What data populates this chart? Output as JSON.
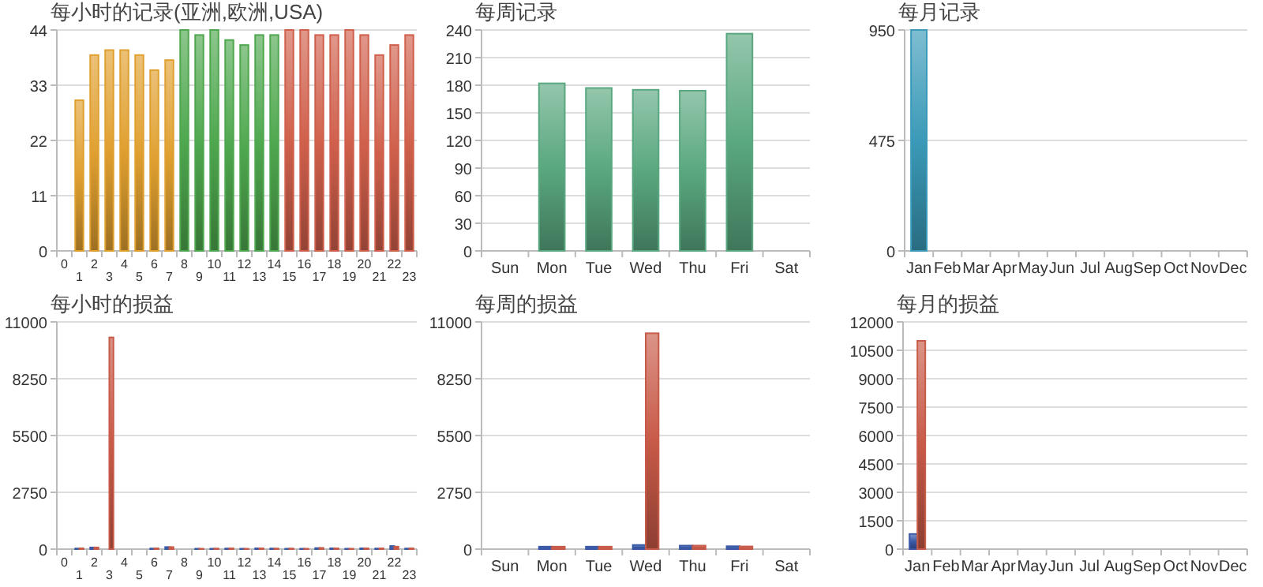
{
  "chart_data": [
    {
      "type": "bar",
      "title": "每小时的记录(亚洲,欧洲,USA)",
      "categories": [
        "0",
        "1",
        "2",
        "3",
        "4",
        "5",
        "6",
        "7",
        "8",
        "9",
        "10",
        "11",
        "12",
        "13",
        "14",
        "15",
        "16",
        "17",
        "18",
        "19",
        "20",
        "21",
        "22",
        "23"
      ],
      "values": [
        null,
        30,
        39,
        40,
        40,
        39,
        36,
        38,
        44,
        43,
        44,
        42,
        41,
        43,
        43,
        44,
        44,
        43,
        43,
        44,
        43,
        39,
        41,
        43
      ],
      "colors": [
        null,
        "#e0a030",
        "#e0a030",
        "#e0a030",
        "#e0a030",
        "#e0a030",
        "#e0a030",
        "#e0a030",
        "#4fa84f",
        "#4fa84f",
        "#4fa84f",
        "#4fa84f",
        "#4fa84f",
        "#4fa84f",
        "#4fa84f",
        "#d0604c",
        "#d0604c",
        "#d0604c",
        "#d0604c",
        "#d0604c",
        "#d0604c",
        "#d0604c",
        "#d0604c",
        "#d0604c"
      ],
      "ylim": [
        0,
        44
      ],
      "yticks": [
        0,
        11,
        22,
        33,
        44
      ],
      "grid": "y"
    },
    {
      "type": "bar",
      "title": "每周记录",
      "categories": [
        "Sun",
        "Mon",
        "Tue",
        "Wed",
        "Thu",
        "Fri",
        "Sat"
      ],
      "values": [
        null,
        182,
        177,
        175,
        174,
        236,
        null
      ],
      "color": "#5aa880",
      "ylim": [
        0,
        240
      ],
      "yticks": [
        0,
        30,
        60,
        90,
        120,
        150,
        180,
        210,
        240
      ],
      "grid": "y"
    },
    {
      "type": "bar",
      "title": "每月记录",
      "categories": [
        "Jan",
        "Feb",
        "Mar",
        "Apr",
        "May",
        "Jun",
        "Jul",
        "Aug",
        "Sep",
        "Oct",
        "Nov",
        "Dec"
      ],
      "values": [
        950,
        null,
        null,
        null,
        null,
        null,
        null,
        null,
        null,
        null,
        null,
        null
      ],
      "color": "#3a9ab8",
      "ylim": [
        0,
        950
      ],
      "yticks": [
        0,
        475,
        950
      ],
      "grid": "y"
    },
    {
      "type": "bar",
      "title": "每小时的损益",
      "categories": [
        "0",
        "1",
        "2",
        "3",
        "4",
        "5",
        "6",
        "7",
        "8",
        "9",
        "10",
        "11",
        "12",
        "13",
        "14",
        "15",
        "16",
        "17",
        "18",
        "19",
        "20",
        "21",
        "22",
        "23"
      ],
      "series": [
        {
          "color": "#3a5aa8",
          "values": [
            null,
            30,
            80,
            null,
            null,
            null,
            30,
            100,
            null,
            20,
            20,
            30,
            20,
            40,
            30,
            20,
            20,
            50,
            40,
            20,
            40,
            30,
            150,
            30
          ]
        },
        {
          "color": "#c85a48",
          "values": [
            null,
            40,
            80,
            10250,
            null,
            null,
            40,
            100,
            null,
            20,
            30,
            40,
            20,
            40,
            30,
            30,
            20,
            60,
            40,
            20,
            40,
            40,
            120,
            40
          ]
        }
      ],
      "ylim": [
        0,
        11000
      ],
      "yticks": [
        0,
        2750,
        5500,
        8250,
        11000
      ],
      "grid": "y"
    },
    {
      "type": "bar",
      "title": "每周的损益",
      "categories": [
        "Sun",
        "Mon",
        "Tue",
        "Wed",
        "Thu",
        "Fri",
        "Sat"
      ],
      "series": [
        {
          "color": "#3a5aa8",
          "values": [
            null,
            120,
            120,
            200,
            170,
            140,
            null
          ]
        },
        {
          "color": "#c85a48",
          "values": [
            null,
            120,
            120,
            10450,
            170,
            130,
            null
          ]
        }
      ],
      "ylim": [
        0,
        11000
      ],
      "yticks": [
        0,
        2750,
        5500,
        8250,
        11000
      ],
      "grid": "y"
    },
    {
      "type": "bar",
      "title": "每月的损益",
      "categories": [
        "Jan",
        "Feb",
        "Mar",
        "Apr",
        "May",
        "Jun",
        "Jul",
        "Aug",
        "Sep",
        "Oct",
        "Nov",
        "Dec"
      ],
      "series": [
        {
          "color": "#3a5aa8",
          "values": [
            800,
            null,
            null,
            null,
            null,
            null,
            null,
            null,
            null,
            null,
            null,
            null
          ]
        },
        {
          "color": "#c85a48",
          "values": [
            11000,
            null,
            null,
            null,
            null,
            null,
            null,
            null,
            null,
            null,
            null,
            null
          ]
        }
      ],
      "ylim": [
        0,
        12000
      ],
      "yticks": [
        0,
        1500,
        3000,
        4500,
        6000,
        7500,
        9000,
        10500,
        12000
      ],
      "grid": "y"
    }
  ]
}
